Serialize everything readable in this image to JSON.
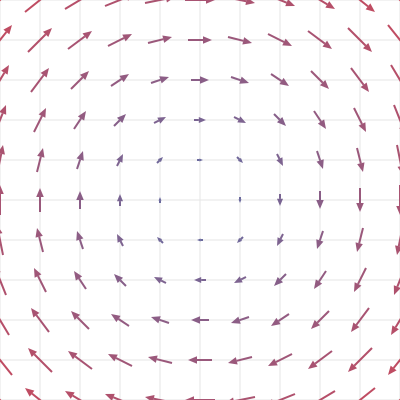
{
  "chart_data": {
    "type": "quiver",
    "x": [
      -5,
      -4,
      -3,
      -2,
      -1,
      0,
      1,
      2,
      3,
      4,
      5
    ],
    "y": [
      5,
      4,
      3,
      2,
      1,
      0,
      -1,
      -2,
      -3,
      -4,
      -5
    ],
    "u": [
      [
        5,
        5,
        5,
        5,
        5,
        5,
        5,
        5,
        5,
        5,
        5
      ],
      [
        4,
        4,
        4,
        4,
        4,
        4,
        4,
        4,
        4,
        4,
        4
      ],
      [
        3,
        3,
        3,
        3,
        3,
        3,
        3,
        3,
        3,
        3,
        3
      ],
      [
        2,
        2,
        2,
        2,
        2,
        2,
        2,
        2,
        2,
        2,
        2
      ],
      [
        1,
        1,
        1,
        1,
        1,
        1,
        1,
        1,
        1,
        1,
        1
      ],
      [
        0,
        0,
        0,
        0,
        0,
        0,
        0,
        0,
        0,
        0,
        0
      ],
      [
        -1,
        -1,
        -1,
        -1,
        -1,
        -1,
        -1,
        -1,
        -1,
        -1,
        -1
      ],
      [
        -2,
        -2,
        -2,
        -2,
        -2,
        -2,
        -2,
        -2,
        -2,
        -2,
        -2
      ],
      [
        -3,
        -3,
        -3,
        -3,
        -3,
        -3,
        -3,
        -3,
        -3,
        -3,
        -3
      ],
      [
        -4,
        -4,
        -4,
        -4,
        -4,
        -4,
        -4,
        -4,
        -4,
        -4,
        -4
      ],
      [
        -5,
        -5,
        -5,
        -5,
        -5,
        -5,
        -5,
        -5,
        -5,
        -5,
        -5
      ]
    ],
    "v": [
      [
        5,
        4,
        3,
        2,
        1,
        0,
        -1,
        -2,
        -3,
        -4,
        -5
      ],
      [
        5,
        4,
        3,
        2,
        1,
        0,
        -1,
        -2,
        -3,
        -4,
        -5
      ],
      [
        5,
        4,
        3,
        2,
        1,
        0,
        -1,
        -2,
        -3,
        -4,
        -5
      ],
      [
        5,
        4,
        3,
        2,
        1,
        0,
        -1,
        -2,
        -3,
        -4,
        -5
      ],
      [
        5,
        4,
        3,
        2,
        1,
        0,
        -1,
        -2,
        -3,
        -4,
        -5
      ],
      [
        5,
        4,
        3,
        2,
        1,
        0,
        -1,
        -2,
        -3,
        -4,
        -5
      ],
      [
        5,
        4,
        3,
        2,
        1,
        0,
        -1,
        -2,
        -3,
        -4,
        -5
      ],
      [
        5,
        4,
        3,
        2,
        1,
        0,
        -1,
        -2,
        -3,
        -4,
        -5
      ],
      [
        5,
        4,
        3,
        2,
        1,
        0,
        -1,
        -2,
        -3,
        -4,
        -5
      ],
      [
        5,
        4,
        3,
        2,
        1,
        0,
        -1,
        -2,
        -3,
        -4,
        -5
      ],
      [
        5,
        4,
        3,
        2,
        1,
        0,
        -1,
        -2,
        -3,
        -4,
        -5
      ]
    ],
    "xlim": [
      -5,
      5
    ],
    "ylim": [
      -5,
      5
    ],
    "grid": true,
    "color_low": "#5a6fa8",
    "color_high": "#c9485b"
  }
}
